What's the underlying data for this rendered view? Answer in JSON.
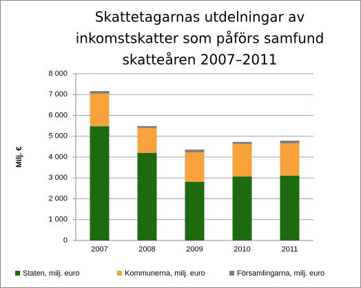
{
  "chart_data": {
    "type": "stacked_bar",
    "title": [
      "Skattetagarnas utdelningar av",
      "inkomstskatter som påförs samfund",
      "skatteåren 2007–2011"
    ],
    "y_label": "Milj. €",
    "categories": [
      "2007",
      "2008",
      "2009",
      "2010",
      "2011"
    ],
    "series": [
      {
        "name": "Staten, milj. euro",
        "color": "#1e6b0f",
        "values": [
          5480,
          4200,
          2810,
          3070,
          3110
        ]
      },
      {
        "name": "Kommunerna, milj. euro",
        "color": "#f9a23c",
        "values": [
          1560,
          1190,
          1420,
          1560,
          1550
        ]
      },
      {
        "name": "Församlingarna, milj. euro",
        "color": "#808080",
        "values": [
          130,
          100,
          130,
          100,
          130
        ]
      }
    ],
    "ylim": [
      0,
      8000
    ],
    "yticks": [
      0,
      {
        "value": 1000,
        "label": "1 000"
      },
      {
        "value": 2000,
        "label": "2 000"
      },
      {
        "value": 3000,
        "label": "3 000"
      },
      {
        "value": 4000,
        "label": "4 000"
      },
      {
        "value": 5000,
        "label": "5 000"
      },
      {
        "value": 6000,
        "label": "6 000"
      },
      {
        "value": 7000,
        "label": "7 000"
      },
      {
        "value": 8000,
        "label": "8 000"
      }
    ],
    "grid": true,
    "legend": "bottom"
  }
}
